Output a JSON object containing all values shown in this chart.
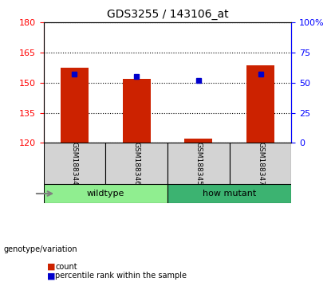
{
  "title": "GDS3255 / 143106_at",
  "samples": [
    "GSM188344",
    "GSM188346",
    "GSM188345",
    "GSM188347"
  ],
  "count_values": [
    157.5,
    152.0,
    122.0,
    158.5
  ],
  "percentile_pct": [
    57,
    55,
    52,
    57
  ],
  "ylim_left": [
    120,
    180
  ],
  "ylim_right": [
    0,
    100
  ],
  "yticks_left": [
    120,
    135,
    150,
    165,
    180
  ],
  "yticks_right": [
    0,
    25,
    50,
    75,
    100
  ],
  "ytick_labels_right": [
    "0",
    "25",
    "50",
    "75",
    "100%"
  ],
  "groups": [
    {
      "label": "wildtype",
      "indices": [
        0,
        1
      ],
      "color": "#90EE90"
    },
    {
      "label": "how mutant",
      "indices": [
        2,
        3
      ],
      "color": "#3CB371"
    }
  ],
  "bar_color": "#CC2200",
  "marker_color": "#0000CC",
  "bar_width": 0.45,
  "sample_box_color": "#D3D3D3",
  "group_label": "genotype/variation",
  "legend_count": "count",
  "legend_pct": "percentile rank within the sample",
  "base_value": 120
}
